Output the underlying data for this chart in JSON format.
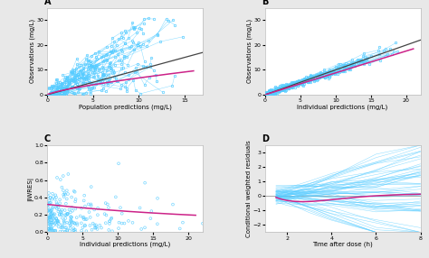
{
  "fig_bg": "#e8e8e8",
  "panel_bg": "#ffffff",
  "point_color": "#55ccff",
  "line_color_blue": "#55ccff",
  "line_color_pink": "#cc2288",
  "line_color_dark": "#444444",
  "line_color_gray": "#999999",
  "A_xlabel": "Population predictions (mg/L)",
  "A_ylabel": "Observations (mg/L)",
  "A_xlim": [
    0,
    17
  ],
  "A_ylim": [
    0,
    35
  ],
  "A_xticks": [
    0,
    5,
    10,
    15
  ],
  "A_yticks": [
    0,
    10,
    20,
    30
  ],
  "A_label": "A",
  "B_xlabel": "Individual predictions (mg/L)",
  "B_ylabel": "Observations (mg/L)",
  "B_xlim": [
    0,
    22
  ],
  "B_ylim": [
    0,
    35
  ],
  "B_xticks": [
    0,
    5,
    10,
    15,
    20
  ],
  "B_yticks": [
    0,
    10,
    20,
    30
  ],
  "B_label": "B",
  "C_xlabel": "Individual predictions (mg/L)",
  "C_ylabel": "|IWRES|",
  "C_xlim": [
    0,
    22
  ],
  "C_ylim": [
    0,
    1.0
  ],
  "C_xticks": [
    0,
    5,
    10,
    15,
    20
  ],
  "C_yticks": [
    0.0,
    0.2,
    0.4,
    0.6,
    0.8,
    1.0
  ],
  "C_label": "C",
  "D_xlabel": "Time after dose (h)",
  "D_ylabel": "Conditional weighted residuals",
  "D_xlim": [
    1,
    8
  ],
  "D_ylim": [
    -2.5,
    3.5
  ],
  "D_xticks": [
    2,
    4,
    6,
    8
  ],
  "D_yticks": [
    -2,
    -1,
    0,
    1,
    2,
    3
  ],
  "D_label": "D"
}
